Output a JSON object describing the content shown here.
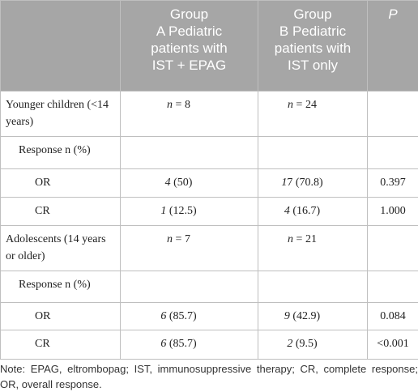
{
  "table": {
    "header": [
      "",
      "Group\nA Pediatric\npatients with\nIST + EPAG",
      "Group\nB Pediatric\npatients with\nIST only",
      "P"
    ],
    "rows": [
      [
        "Younger children (<14 years)",
        "n = 8",
        "n = 24",
        ""
      ],
      [
        "Response n (%)",
        "",
        "",
        ""
      ],
      [
        "OR",
        "4 (50)",
        "17 (70.8)",
        "0.397"
      ],
      [
        "CR",
        "1 (12.5)",
        "4 (16.7)",
        "1.000"
      ],
      [
        "Adolescents (14 years or older)",
        "n = 7",
        "n = 21",
        ""
      ],
      [
        "Response n (%)",
        "",
        "",
        ""
      ],
      [
        "OR",
        "6 (85.7)",
        "9 (42.9)",
        "0.084"
      ],
      [
        "CR",
        "6 (85.7)",
        "2 (9.5)",
        "<0.001"
      ]
    ]
  },
  "note": "Note: EPAG, eltrombopag; IST, immunosuppressive therapy; CR, complete response; OR, overall response."
}
